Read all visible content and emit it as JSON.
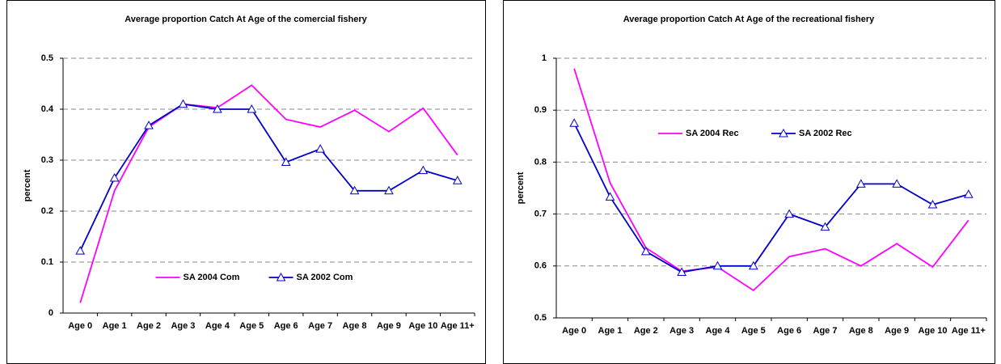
{
  "chart_data": [
    {
      "type": "line",
      "title": "Average proportion Catch At Age of the comercial fishery",
      "y_label": "percent",
      "categories": [
        "Age 0",
        "Age 1",
        "Age 2",
        "Age 3",
        "Age 4",
        "Age 5",
        "Age 6",
        "Age 7",
        "Age 8",
        "Age 9",
        "Age 10",
        "Age 11+"
      ],
      "series": [
        {
          "name": "SA 2004 Com",
          "color": "#ff00ff",
          "values": [
            0.02,
            0.24,
            0.365,
            0.41,
            0.403,
            0.447,
            0.38,
            0.365,
            0.398,
            0.356,
            0.402,
            0.31
          ]
        },
        {
          "name": "SA 2002 Com",
          "color": "#0000cc",
          "marker": "triangle",
          "values": [
            0.122,
            0.265,
            0.368,
            0.41,
            0.4,
            0.4,
            0.296,
            0.322,
            0.24,
            0.24,
            0.28,
            0.26
          ]
        }
      ],
      "ylim": [
        0,
        0.5
      ],
      "yticks": [
        0,
        0.1,
        0.2,
        0.3,
        0.4,
        0.5
      ],
      "grid": true,
      "legend": "lower center"
    },
    {
      "type": "line",
      "title": "Average proportion Catch At Age of the recreational fishery",
      "y_label": "percent",
      "categories": [
        "Age 0",
        "Age 1",
        "Age 2",
        "Age 3",
        "Age 4",
        "Age 5",
        "Age 6",
        "Age 7",
        "Age 8",
        "Age 9",
        "Age 10",
        "Age 11+"
      ],
      "series": [
        {
          "name": "SA 2004 Rec",
          "color": "#ff00ff",
          "values": [
            0.98,
            0.76,
            0.635,
            0.59,
            0.598,
            0.553,
            0.618,
            0.633,
            0.6,
            0.643,
            0.598,
            0.688
          ]
        },
        {
          "name": "SA 2002 Rec",
          "color": "#0000cc",
          "marker": "triangle",
          "values": [
            0.875,
            0.733,
            0.628,
            0.588,
            0.6,
            0.6,
            0.7,
            0.675,
            0.758,
            0.758,
            0.718,
            0.738
          ]
        }
      ],
      "ylim": [
        0.5,
        1
      ],
      "yticks": [
        0.5,
        0.6,
        0.7,
        0.8,
        0.9,
        1
      ],
      "grid": true,
      "legend": "upper center"
    }
  ]
}
